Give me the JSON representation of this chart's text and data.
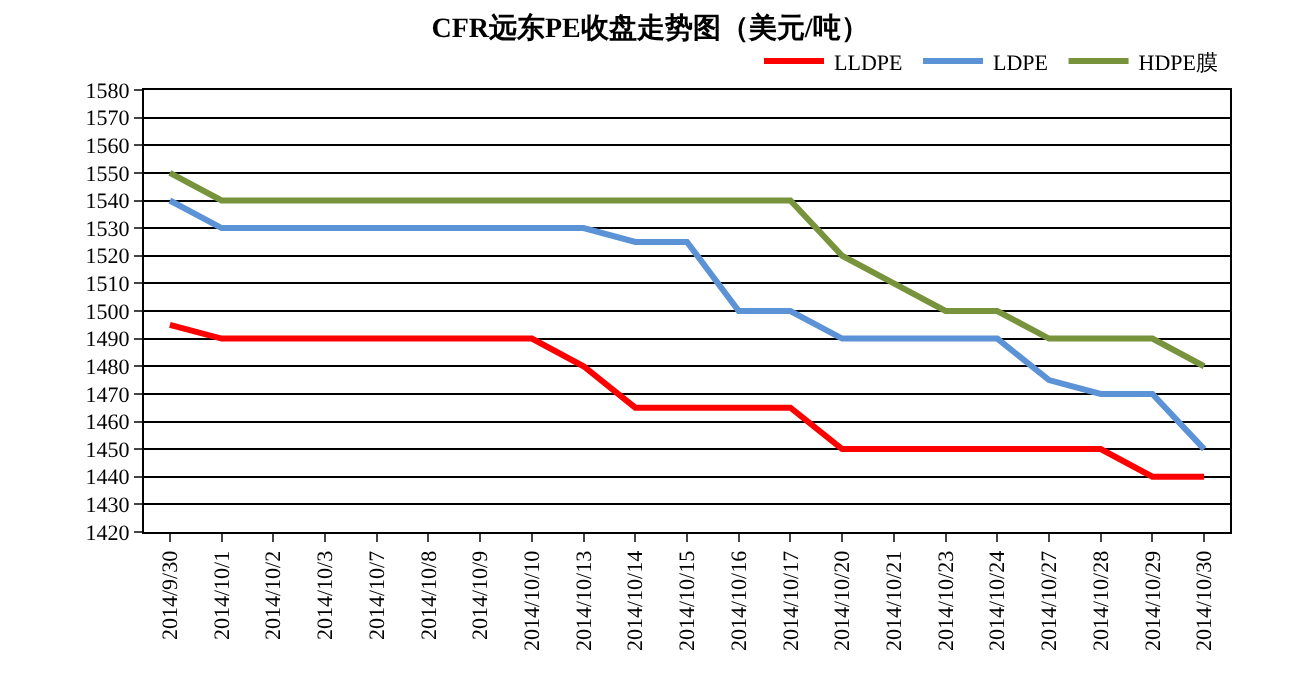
{
  "chart_data": {
    "type": "line",
    "title": "CFR远东PE收盘走势图（美元/吨）",
    "categories": [
      "2014/9/30",
      "2014/10/1",
      "2014/10/2",
      "2014/10/3",
      "2014/10/7",
      "2014/10/8",
      "2014/10/9",
      "2014/10/10",
      "2014/10/13",
      "2014/10/14",
      "2014/10/15",
      "2014/10/16",
      "2014/10/17",
      "2014/10/20",
      "2014/10/21",
      "2014/10/23",
      "2014/10/24",
      "2014/10/27",
      "2014/10/28",
      "2014/10/29",
      "2014/10/30"
    ],
    "series": [
      {
        "name": "LLDPE",
        "color": "#ff0000",
        "values": [
          1495,
          1490,
          1490,
          1490,
          1490,
          1490,
          1490,
          1490,
          1480,
          1465,
          1465,
          1465,
          1465,
          1450,
          1450,
          1450,
          1450,
          1450,
          1450,
          1440,
          1440
        ]
      },
      {
        "name": "LDPE",
        "color": "#5b93d6",
        "values": [
          1540,
          1530,
          1530,
          1530,
          1530,
          1530,
          1530,
          1530,
          1530,
          1525,
          1525,
          1500,
          1500,
          1490,
          1490,
          1490,
          1490,
          1475,
          1470,
          1470,
          1450
        ]
      },
      {
        "name": "HDPE膜",
        "color": "#77933c",
        "values": [
          1550,
          1540,
          1540,
          1540,
          1540,
          1540,
          1540,
          1540,
          1540,
          1540,
          1540,
          1540,
          1540,
          1520,
          1510,
          1500,
          1500,
          1490,
          1490,
          1490,
          1480
        ]
      }
    ],
    "ylim": [
      1420,
      1580
    ],
    "yticks": [
      1420,
      1430,
      1440,
      1450,
      1460,
      1470,
      1480,
      1490,
      1500,
      1510,
      1520,
      1530,
      1540,
      1550,
      1560,
      1570,
      1580
    ],
    "grid": "y",
    "legend": "top right",
    "marker": "none",
    "line_style": "solid"
  }
}
